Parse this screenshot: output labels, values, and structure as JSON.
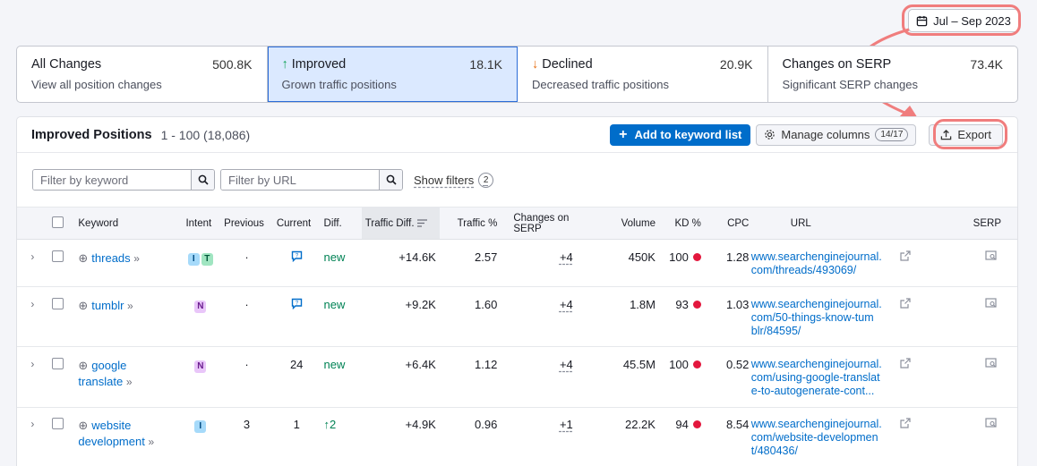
{
  "date_range": "Jul – Sep 2023",
  "tabs": [
    {
      "title": "All Changes",
      "count": "500.8K",
      "sub": "View all position changes",
      "arrow": ""
    },
    {
      "title": "Improved",
      "count": "18.1K",
      "sub": "Grown traffic positions",
      "arrow": "↑"
    },
    {
      "title": "Declined",
      "count": "20.9K",
      "sub": "Decreased traffic positions",
      "arrow": "↓"
    },
    {
      "title": "Changes on SERP",
      "count": "73.4K",
      "sub": "Significant SERP changes",
      "arrow": ""
    }
  ],
  "panel": {
    "title": "Improved Positions",
    "range": "1 - 100 (18,086)",
    "add_label": "Add to keyword list",
    "manage_label": "Manage columns",
    "manage_badge": "14/17",
    "export_label": "Export"
  },
  "filters": {
    "keyword_placeholder": "Filter by keyword",
    "url_placeholder": "Filter by URL",
    "show_filters": "Show filters",
    "show_filters_count": "2"
  },
  "columns": [
    "Keyword",
    "Intent",
    "Previous",
    "Current",
    "Diff.",
    "Traffic Diff.",
    "Traffic %",
    "Changes on SERP",
    "Volume",
    "KD %",
    "CPC",
    "URL",
    "SERP"
  ],
  "rows": [
    {
      "kw1": "threads",
      "kw2": "",
      "intent": [
        "I",
        "T"
      ],
      "previous": "·",
      "current_icon": "featured-snippet",
      "current": "",
      "diff": "new",
      "traffic_diff": "+14.6K",
      "traffic_pct": "2.57",
      "serp": "+4",
      "volume": "450K",
      "kd": "100",
      "cpc": "1.28",
      "url": [
        "www.searchenginejournal.",
        "com/threads/493069/"
      ]
    },
    {
      "kw1": "tumblr",
      "kw2": "",
      "intent": [
        "N"
      ],
      "previous": "·",
      "current_icon": "featured-snippet",
      "current": "",
      "diff": "new",
      "traffic_diff": "+9.2K",
      "traffic_pct": "1.60",
      "serp": "+4",
      "volume": "1.8M",
      "kd": "93",
      "cpc": "1.03",
      "url": [
        "www.searchenginejournal.",
        "com/50-things-know-tum",
        "blr/84595/"
      ]
    },
    {
      "kw1": "google",
      "kw2": "translate",
      "intent": [
        "N"
      ],
      "previous": "·",
      "current_icon": "",
      "current": "24",
      "diff": "new",
      "traffic_diff": "+6.4K",
      "traffic_pct": "1.12",
      "serp": "+4",
      "volume": "45.5M",
      "kd": "100",
      "cpc": "0.52",
      "url": [
        "www.searchenginejournal.",
        "com/using-google-translat",
        "e-to-autogenerate-cont..."
      ]
    },
    {
      "kw1": "website",
      "kw2": "development",
      "intent": [
        "I"
      ],
      "previous": "3",
      "current_icon": "",
      "current": "1",
      "diff": "2",
      "traffic_diff": "+4.9K",
      "traffic_pct": "0.96",
      "serp": "+1",
      "volume": "22.2K",
      "kd": "94",
      "cpc": "8.54",
      "url": [
        "www.searchenginejournal.",
        "com/website-developmen",
        "t/480436/"
      ]
    }
  ],
  "colors": {
    "accent": "#006dca",
    "highlight": "#f07d7d",
    "kd_dot": "#e3173d",
    "positive": "#008254"
  }
}
